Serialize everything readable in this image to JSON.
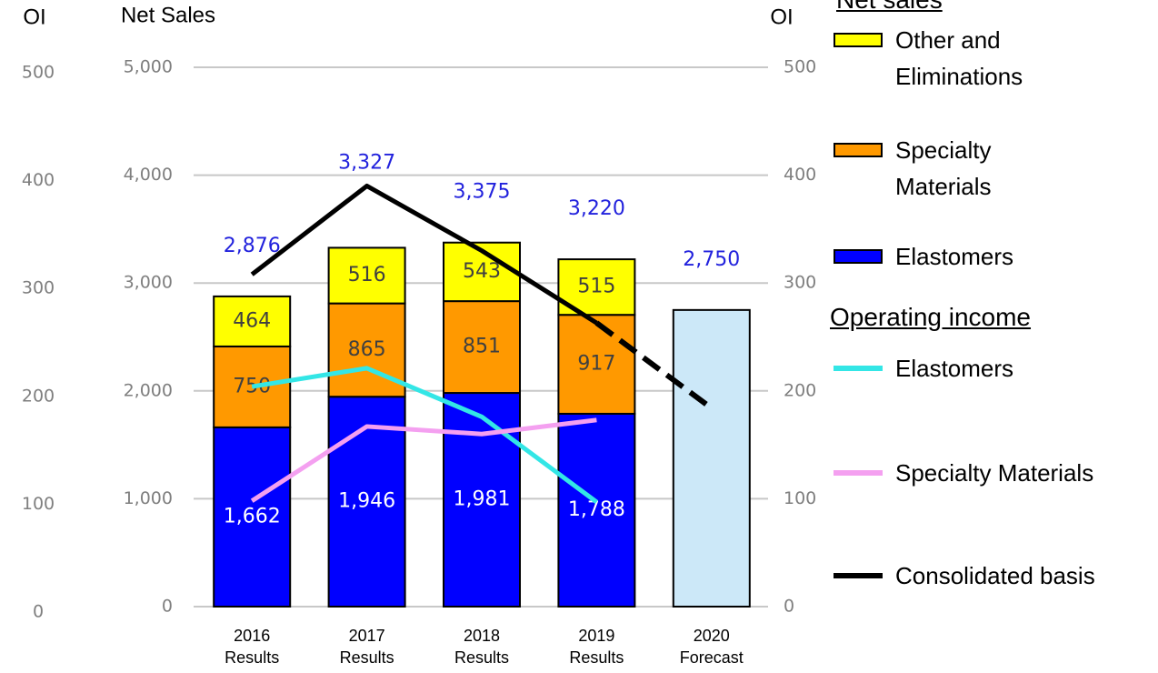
{
  "chart_data": {
    "type": "bar",
    "y_label": "Net Sales",
    "y2_label": "OI",
    "categories": [
      [
        "2016",
        "Results"
      ],
      [
        "2017",
        "Results"
      ],
      [
        "2018",
        "Results"
      ],
      [
        "2019",
        "Results"
      ],
      [
        "2020",
        "Forecast"
      ]
    ],
    "ylim": [
      0,
      5000
    ],
    "yticks": [
      0,
      {
        "value": 1000,
        "label": "1,000"
      },
      {
        "value": 2000,
        "label": "2,000"
      },
      {
        "value": 3000,
        "label": "3,000"
      },
      {
        "value": 4000,
        "label": "4,000"
      },
      {
        "value": 5000,
        "label": "5,000"
      }
    ],
    "y2lim": [
      0,
      500
    ],
    "y2ticks": [
      0,
      100,
      200,
      300,
      400,
      500
    ],
    "grid": true,
    "legend_headings": [
      "Net sales",
      "Operating income"
    ],
    "series": [
      {
        "name": "Elastomers",
        "color": "#0000ff",
        "label_color": "#ffffff",
        "values": [
          1662,
          1946,
          1981,
          1788,
          null
        ],
        "value_labels": [
          "1,662",
          "1,946",
          "1,981",
          "1,788",
          null
        ]
      },
      {
        "name": "Specialty Materials",
        "color": "#ff9900",
        "label_color": "#404040",
        "values": [
          750,
          865,
          851,
          917,
          null
        ]
      },
      {
        "name": "Other and Eliminations",
        "color": "#ffff00",
        "label_color": "#404040",
        "values": [
          464,
          516,
          543,
          515,
          null
        ]
      }
    ],
    "totals": {
      "values": [
        2876,
        3327,
        3375,
        3220,
        2750
      ],
      "value_labels": [
        "2,876",
        "3,327",
        "3,375",
        "3,220",
        "2,750"
      ],
      "label_color": "#2222dd",
      "forecast_color": "#cce8f8"
    },
    "lines": [
      {
        "name": "Elastomers",
        "color": "#33e6e6",
        "axis": "y2",
        "values": [
          204,
          221,
          176,
          97,
          null
        ]
      },
      {
        "name": "Specialty Materials",
        "color": "#f4a0f0",
        "axis": "y2",
        "values": [
          98,
          167,
          160,
          173,
          null
        ]
      },
      {
        "name": "Consolidated basis",
        "color": "#000000",
        "axis": "y2",
        "values": [
          308,
          390,
          330,
          263,
          184
        ],
        "dash_last": true
      }
    ]
  }
}
